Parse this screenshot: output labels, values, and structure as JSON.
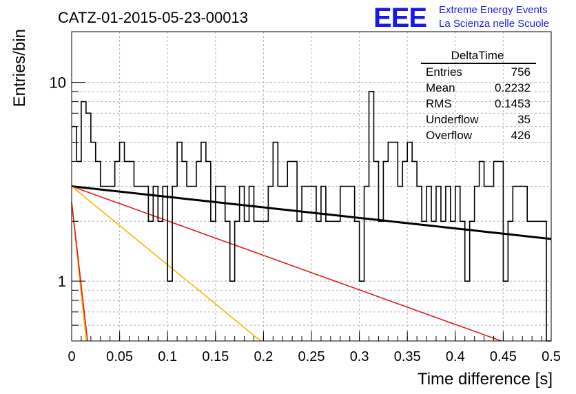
{
  "title": "CATZ-01-2015-05-23-00013",
  "logo": {
    "mark": "EEE",
    "line1": "Extreme Energy Events",
    "line2": "La Scienza nelle Scuole"
  },
  "stats": {
    "name": "DeltaTime",
    "rows": [
      {
        "label": "Entries",
        "value": "756"
      },
      {
        "label": "Mean",
        "value": "0.2232"
      },
      {
        "label": "RMS",
        "value": "0.1453"
      },
      {
        "label": "Underflow",
        "value": "35"
      },
      {
        "label": "Overflow",
        "value": "426"
      }
    ]
  },
  "chart_data": {
    "type": "histogram",
    "xlabel": "Time difference [s]",
    "ylabel": "Entries/bin",
    "xlim": [
      0,
      0.5
    ],
    "ylim": [
      0.5,
      18
    ],
    "yscale": "log",
    "grid": true,
    "x_ticks": [
      0,
      0.05,
      0.1,
      0.15,
      0.2,
      0.25,
      0.3,
      0.35,
      0.4,
      0.45,
      0.5
    ],
    "x_tick_labels": [
      "0",
      "0.05",
      "0.1",
      "0.15",
      "0.2",
      "0.25",
      "0.3",
      "0.35",
      "0.4",
      "0.45",
      "0.5"
    ],
    "y_tick_labels": [
      {
        "value": 1,
        "label": "1"
      },
      {
        "value": 10,
        "label": "10"
      }
    ],
    "bin_width": 0.005,
    "bin_values": [
      6,
      4,
      8,
      7,
      5,
      4,
      3,
      3,
      3,
      4,
      5,
      4,
      4,
      3,
      3,
      3,
      2,
      3,
      2,
      3,
      1,
      3,
      5,
      4,
      3,
      3,
      4,
      5,
      4,
      2,
      3,
      3,
      2,
      1,
      2,
      3,
      2,
      3,
      2,
      2,
      2,
      3,
      5,
      3,
      3,
      4,
      4,
      2,
      3,
      3,
      3,
      2,
      3,
      2,
      2,
      2,
      3,
      3,
      3,
      2,
      1,
      3,
      9,
      4,
      2,
      4,
      5,
      5,
      3,
      4,
      5,
      4,
      3,
      2,
      3,
      2,
      3,
      2,
      3,
      2,
      3,
      2,
      1,
      2,
      3,
      4,
      3,
      3,
      4,
      4,
      1,
      2,
      3,
      3,
      3,
      2,
      2,
      2,
      2,
      0.5
    ],
    "fits": [
      {
        "color": "#000000",
        "y0": 3.0,
        "tau": 0.82
      },
      {
        "color": "#e31a1c",
        "y0": 3.0,
        "tau": 0.25
      },
      {
        "color": "#f5b800",
        "y0": 3.0,
        "tau": 0.11
      },
      {
        "color": "#f5b800",
        "y0": 2.5,
        "tau": 0.0094
      },
      {
        "color": "#e31a1c",
        "y0": 2.5,
        "tau": 0.0103
      }
    ]
  }
}
